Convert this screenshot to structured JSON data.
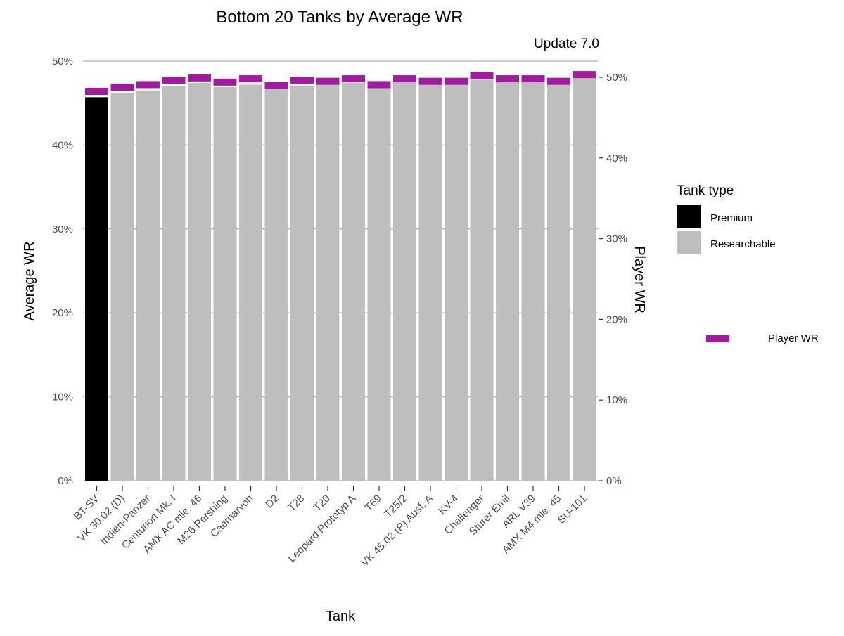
{
  "chart_data": {
    "type": "bar",
    "title": "Bottom 20 Tanks by Average WR",
    "subtitle": "Update 7.0",
    "xlabel": "Tank",
    "ylabel": "Average WR",
    "y2label": "Player WR",
    "ylim": [
      0,
      0.5
    ],
    "y_ticks": [
      "0%",
      "10%",
      "20%",
      "30%",
      "40%",
      "50%"
    ],
    "y2lim": [
      0,
      0.5
    ],
    "y2_ticks": [
      "0%",
      "10%",
      "20%",
      "30%",
      "40%",
      "50%"
    ],
    "grid": true,
    "legend_placement": "right",
    "legend": {
      "title": "Tank type",
      "items": [
        {
          "label": "Premium",
          "color": "#000000"
        },
        {
          "label": "Researchable",
          "color": "#bebebe"
        }
      ],
      "player_label": "Player WR",
      "player_color": "#a21a9e"
    },
    "categories": [
      "BT-SV",
      "VK 30.02 (D)",
      "Indien-Panzer",
      "Centurion Mk. I",
      "AMX AC mle. 46",
      "M26 Pershing",
      "Caernarvon",
      "D2",
      "T28",
      "T20",
      "Leopard Prototyp A",
      "T69",
      "T25/2",
      "VK 45.02 (P) Ausf. A",
      "KV-4",
      "Challenger",
      "Sturer Emil",
      "ARL V39",
      "AMX M4 mle. 45",
      "SU-101"
    ],
    "series": [
      {
        "name": "Average WR",
        "types": [
          "Premium",
          "Researchable",
          "Researchable",
          "Researchable",
          "Researchable",
          "Researchable",
          "Researchable",
          "Researchable",
          "Researchable",
          "Researchable",
          "Researchable",
          "Researchable",
          "Researchable",
          "Researchable",
          "Researchable",
          "Researchable",
          "Researchable",
          "Researchable",
          "Researchable",
          "Researchable"
        ],
        "values": [
          0.457,
          0.462,
          0.465,
          0.47,
          0.474,
          0.469,
          0.472,
          0.47,
          0.471,
          0.472,
          0.474,
          0.475,
          0.476,
          0.475,
          0.475,
          0.478,
          0.476,
          0.477,
          0.477,
          0.481
        ]
      },
      {
        "name": "Player WR",
        "values": [
          0.464,
          0.469,
          0.472,
          0.477,
          0.48,
          0.475,
          0.479,
          0.471,
          0.477,
          0.476,
          0.479,
          0.472,
          0.479,
          0.476,
          0.476,
          0.483,
          0.479,
          0.479,
          0.476,
          0.484
        ]
      }
    ]
  }
}
